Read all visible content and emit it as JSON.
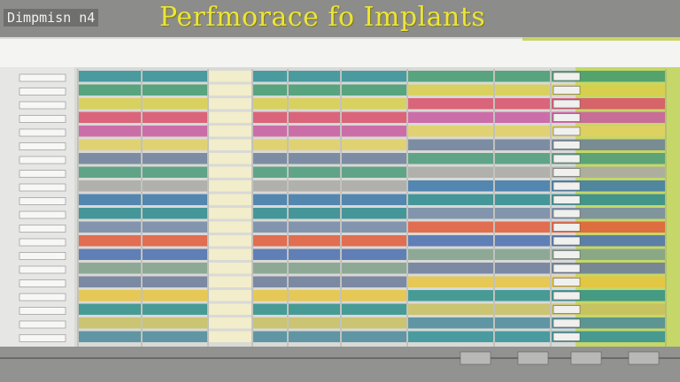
{
  "header": {
    "badge": "Dimpmisn n4",
    "title": "Perfmorace fo Implants"
  }
}
